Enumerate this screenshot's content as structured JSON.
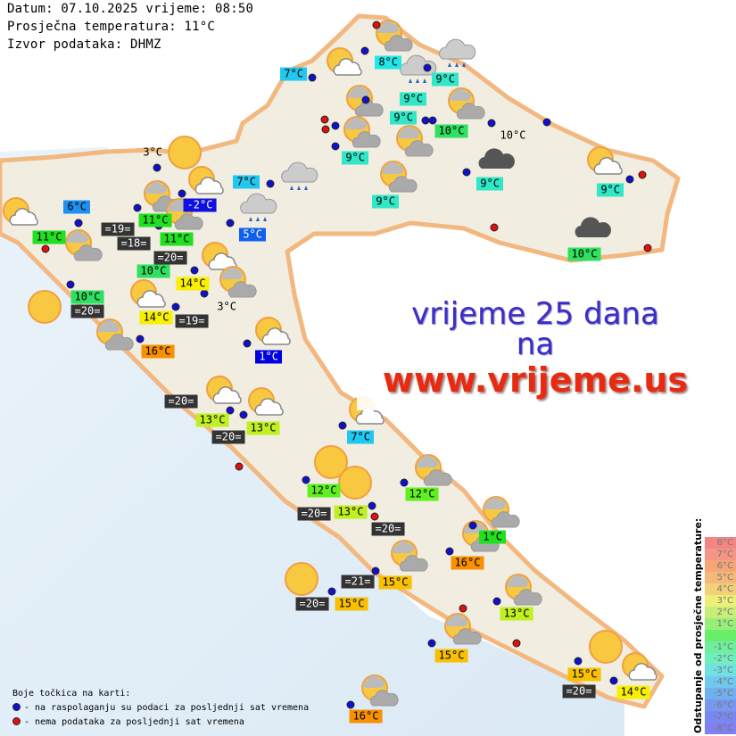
{
  "header": {
    "date_line": "Datum: 07.10.2025 vrijeme: 08:50",
    "avg_temp_line": "Prosječna temperatura: 11°C",
    "source_line": "Izvor podataka: DHMZ"
  },
  "banner": {
    "line1": "vrijeme 25 dana",
    "line2": "na",
    "line3": "www.vrijeme.us"
  },
  "legend": {
    "title": "Boje točkica na karti:",
    "blue": "- na raspolaganju su podaci za posljednji sat vremena",
    "red": "- nema podataka za posljednji sat vremena",
    "blue_color": "#1010d0",
    "red_color": "#e01010"
  },
  "scale": {
    "title": "Odstupanje od prosječne temperature:",
    "items": [
      {
        "t": "8°C",
        "c": "#f38585"
      },
      {
        "t": "7°C",
        "c": "#f59585"
      },
      {
        "t": "6°C",
        "c": "#f7a578"
      },
      {
        "t": "5°C",
        "c": "#f5b878"
      },
      {
        "t": "4°C",
        "c": "#f2d078"
      },
      {
        "t": "3°C",
        "c": "#eeee78"
      },
      {
        "t": "2°C",
        "c": "#c8ee78"
      },
      {
        "t": "1°C",
        "c": "#98ee78"
      },
      {
        "t": "",
        "c": "#68ee68"
      },
      {
        "t": "-1°C",
        "c": "#70eea0"
      },
      {
        "t": "-2°C",
        "c": "#70eec0"
      },
      {
        "t": "-3°C",
        "c": "#70e0e0"
      },
      {
        "t": "-4°C",
        "c": "#70c8f0"
      },
      {
        "t": "-5°C",
        "c": "#70b0f0"
      },
      {
        "t": "-6°C",
        "c": "#7898f0"
      },
      {
        "t": "-7°C",
        "c": "#7888f0"
      },
      {
        "t": "-8°C",
        "c": "#8080f0"
      }
    ]
  },
  "labels": [
    {
      "t": "7°C",
      "bg": "#20c8f0"
    },
    {
      "t": "8°C",
      "bg": "#20e8e8"
    },
    {
      "t": "9°C",
      "bg": "#30e8c8"
    },
    {
      "t": "9°C",
      "bg": "#30e8c8"
    },
    {
      "t": "9°C",
      "bg": "#30e8c8"
    },
    {
      "t": "10°C",
      "bg": "#30e060"
    },
    {
      "t": "9°C",
      "bg": "#30e8c8"
    },
    {
      "t": "9°C",
      "bg": "#30e8c8"
    },
    {
      "t": "9°C",
      "bg": "#30e8c8"
    },
    {
      "t": "10°C",
      "bg": "transparent"
    },
    {
      "t": "9°C",
      "bg": "#30e8c8"
    },
    {
      "t": "10°C",
      "bg": "#30e060"
    },
    {
      "t": "7°C",
      "bg": "#20c8f0"
    },
    {
      "t": "-2°C",
      "bg": "#1010e0",
      "fg": "#fff"
    },
    {
      "t": "6°C",
      "bg": "#2090f0"
    },
    {
      "t": "5°C",
      "bg": "#1060f0",
      "fg": "#fff"
    },
    {
      "t": "11°C",
      "bg": "#20e020"
    },
    {
      "t": "=19=",
      "bg": "#333",
      "fg": "#fff"
    },
    {
      "t": "11°C",
      "bg": "#20e020"
    },
    {
      "t": "=18=",
      "bg": "#333",
      "fg": "#fff"
    },
    {
      "t": "11°C",
      "bg": "#20e020"
    },
    {
      "t": "10°C",
      "bg": "#30e060"
    },
    {
      "t": "=20=",
      "bg": "#333",
      "fg": "#fff"
    },
    {
      "t": "14°C",
      "bg": "#f8f000"
    },
    {
      "t": "10°C",
      "bg": "#30e060"
    },
    {
      "t": "=20=",
      "bg": "#333",
      "fg": "#fff"
    },
    {
      "t": "3°C",
      "bg": "transparent"
    },
    {
      "t": "3°C",
      "bg": "transparent"
    },
    {
      "t": "14°C",
      "bg": "#f8f000"
    },
    {
      "t": "=19=",
      "bg": "#333",
      "fg": "#fff"
    },
    {
      "t": "16°C",
      "bg": "#f89000"
    },
    {
      "t": "1°C",
      "bg": "#0000e0",
      "fg": "#fff"
    },
    {
      "t": "=20=",
      "bg": "#333",
      "fg": "#fff"
    },
    {
      "t": "13°C",
      "bg": "#c0f020"
    },
    {
      "t": "13°C",
      "bg": "#c0f020"
    },
    {
      "t": "=20=",
      "bg": "#333",
      "fg": "#fff"
    },
    {
      "t": "7°C",
      "bg": "#20c8f0"
    },
    {
      "t": "12°C",
      "bg": "#60f020"
    },
    {
      "t": "12°C",
      "bg": "#60f020"
    },
    {
      "t": "=20=",
      "bg": "#333",
      "fg": "#fff"
    },
    {
      "t": "13°C",
      "bg": "#c0f020"
    },
    {
      "t": "=20=",
      "bg": "#333",
      "fg": "#fff"
    },
    {
      "t": "1°C",
      "bg": "#20e020"
    },
    {
      "t": "16°C",
      "bg": "#f89000"
    },
    {
      "t": "=21=",
      "bg": "#333",
      "fg": "#fff"
    },
    {
      "t": "15°C",
      "bg": "#f8c000"
    },
    {
      "t": "=20=",
      "bg": "#333",
      "fg": "#fff"
    },
    {
      "t": "15°C",
      "bg": "#f8c000"
    },
    {
      "t": "13°C",
      "bg": "#c0f020"
    },
    {
      "t": "15°C",
      "bg": "#f8c000"
    },
    {
      "t": "15°C",
      "bg": "#f8c000"
    },
    {
      "t": "=20=",
      "bg": "#333",
      "fg": "#fff"
    },
    {
      "t": "14°C",
      "bg": "#f8f000"
    },
    {
      "t": "16°C",
      "bg": "#f89000"
    }
  ],
  "dots": {
    "blue": 41,
    "red": 11
  },
  "icons": [
    "sun-clouds",
    "sun-cloud",
    "rain",
    "rain",
    "sun-clouds",
    "sun-clouds",
    "sun-clouds",
    "sun-clouds",
    "sun-clouds",
    "dark-cloud",
    "rain",
    "sun-cloud",
    "dark-cloud",
    "sun",
    "sun-cloud",
    "sun-clouds",
    "sun-clouds",
    "rain",
    "sun-cloud",
    "sun-clouds",
    "sun-cloud",
    "sun-clouds",
    "sun",
    "sun-cloud",
    "sun-clouds",
    "sun-cloud",
    "sun-cloud",
    "sun-cloud",
    "sun-cloud",
    "sun",
    "sun",
    "sun-clouds",
    "sun-clouds",
    "sun-clouds",
    "sun-clouds",
    "sun",
    "sun-clouds",
    "sun-clouds",
    "sun",
    "sun-cloud",
    "sun-clouds"
  ]
}
